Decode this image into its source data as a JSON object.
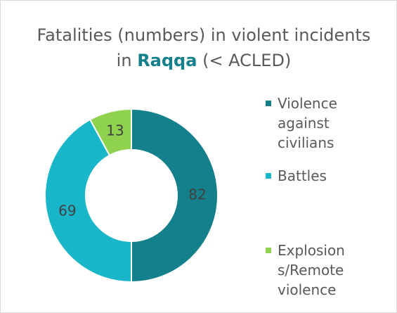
{
  "chart_data": {
    "type": "donut",
    "title": "Fatalities (numbers) in violent incidents in",
    "title_highlight": "Raqqa",
    "title_suffix": "(< ACLED)",
    "series": [
      {
        "name": "Violence against civilians",
        "color": "#13808b",
        "values": [
          82
        ]
      },
      {
        "name": "Battles",
        "color": "#19b6c9",
        "values": [
          69
        ]
      },
      {
        "name": "Explosions/Remote violence",
        "color": "#8fd24e",
        "values": [
          13
        ]
      }
    ]
  }
}
